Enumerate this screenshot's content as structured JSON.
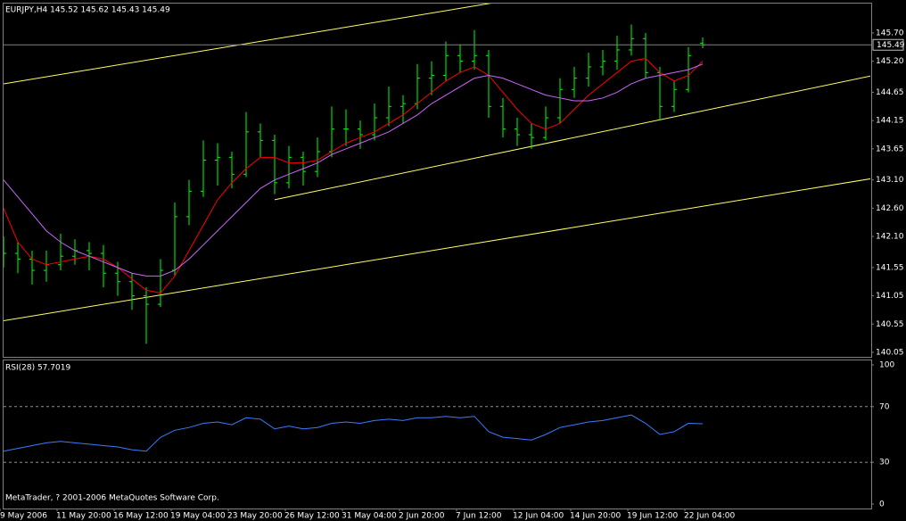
{
  "chart_data": [
    {
      "type": "ohlc",
      "title": "EURJPY,H4  145.52 145.62 145.43 145.49",
      "color": "#00ff00",
      "categories": [
        "9 May 2006",
        null,
        null,
        null,
        "11 May 20:00",
        null,
        null,
        null,
        "16 May 12:00",
        null,
        null,
        null,
        "19 May 04:00",
        null,
        null,
        null,
        "23 May 20:00",
        null,
        null,
        null,
        "26 May 12:00",
        null,
        null,
        null,
        "31 May 04:00",
        null,
        null,
        null,
        "2 Jun 20:00",
        null,
        null,
        null,
        "7 Jun 12:00",
        null,
        null,
        null,
        "12 Jun 04:00",
        null,
        null,
        null,
        "14 Jun 20:00",
        null,
        null,
        null,
        "19 Jun 12:00",
        null,
        null,
        null,
        "22 Jun 04:00",
        null
      ],
      "open": [
        141.9,
        141.8,
        141.7,
        141.5,
        141.6,
        141.75,
        141.85,
        141.8,
        141.45,
        141.3,
        141.05,
        140.9,
        141.5,
        142.45,
        142.9,
        143.45,
        143.5,
        143.2,
        143.95,
        143.8,
        143.05,
        143.5,
        143.25,
        143.6,
        144.0,
        144.0,
        143.9,
        144.2,
        144.4,
        144.45,
        144.9,
        144.95,
        145.3,
        145.2,
        145.3,
        144.4,
        144.0,
        143.9,
        143.85,
        144.2,
        144.7,
        144.9,
        145.1,
        145.2,
        145.4,
        145.6,
        145.0,
        144.4,
        144.7,
        145.52
      ],
      "high": [
        142.1,
        142.0,
        141.85,
        141.85,
        142.15,
        142.05,
        142.0,
        141.95,
        141.65,
        141.45,
        141.2,
        141.7,
        142.7,
        143.1,
        143.8,
        143.75,
        143.6,
        144.3,
        144.1,
        143.9,
        143.7,
        143.6,
        143.85,
        144.4,
        144.35,
        144.15,
        144.45,
        144.75,
        144.6,
        145.15,
        145.2,
        145.55,
        145.5,
        145.75,
        145.4,
        144.55,
        144.2,
        144.1,
        144.4,
        144.9,
        145.1,
        145.35,
        145.4,
        145.65,
        145.85,
        145.7,
        145.1,
        144.85,
        145.45,
        145.62
      ],
      "low": [
        141.55,
        141.45,
        141.25,
        141.3,
        141.5,
        141.6,
        141.5,
        141.2,
        141.05,
        140.8,
        140.2,
        140.85,
        141.4,
        142.3,
        142.8,
        143.0,
        142.95,
        143.15,
        143.5,
        142.85,
        142.95,
        143.0,
        143.15,
        143.5,
        143.7,
        143.65,
        143.8,
        144.05,
        144.1,
        144.35,
        144.6,
        144.85,
        145.0,
        145.05,
        144.2,
        143.85,
        143.7,
        143.65,
        143.8,
        144.1,
        144.55,
        144.75,
        144.95,
        145.05,
        145.3,
        144.9,
        144.15,
        144.3,
        144.65,
        145.43
      ],
      "close": [
        141.8,
        141.7,
        141.5,
        141.6,
        141.75,
        141.85,
        141.8,
        141.45,
        141.3,
        141.05,
        140.9,
        141.5,
        142.45,
        142.9,
        143.45,
        143.5,
        143.2,
        143.95,
        143.8,
        143.05,
        143.5,
        143.25,
        143.6,
        144.0,
        144.0,
        143.9,
        144.2,
        144.4,
        144.45,
        144.9,
        144.95,
        145.3,
        145.2,
        145.3,
        144.4,
        144.0,
        143.9,
        143.85,
        144.2,
        144.7,
        144.9,
        145.1,
        145.2,
        145.4,
        145.6,
        145.0,
        144.4,
        144.7,
        145.3,
        145.49
      ],
      "lines": [
        {
          "color": "#ff0000",
          "values": [
            142.6,
            142.0,
            141.7,
            141.6,
            141.65,
            141.7,
            141.75,
            141.7,
            141.55,
            141.35,
            141.15,
            141.1,
            141.4,
            141.85,
            142.3,
            142.75,
            143.05,
            143.3,
            143.5,
            143.5,
            143.4,
            143.4,
            143.45,
            143.6,
            143.75,
            143.85,
            143.95,
            144.1,
            144.25,
            144.45,
            144.65,
            144.85,
            145.0,
            145.1,
            144.95,
            144.65,
            144.35,
            144.1,
            144.0,
            144.1,
            144.35,
            144.6,
            144.8,
            145.0,
            145.2,
            145.25,
            145.0,
            144.85,
            144.95,
            145.2
          ]
        },
        {
          "color": "#cc66ff",
          "values": [
            143.1,
            142.8,
            142.5,
            142.2,
            142.0,
            141.85,
            141.75,
            141.65,
            141.55,
            141.45,
            141.4,
            141.4,
            141.5,
            141.7,
            141.95,
            142.2,
            142.45,
            142.7,
            142.95,
            143.1,
            143.2,
            143.3,
            143.4,
            143.55,
            143.65,
            143.75,
            143.85,
            143.95,
            144.1,
            144.25,
            144.45,
            144.6,
            144.75,
            144.9,
            144.95,
            144.9,
            144.8,
            144.7,
            144.6,
            144.55,
            144.5,
            144.5,
            144.55,
            144.65,
            144.8,
            144.9,
            144.95,
            145.0,
            145.05,
            145.15
          ]
        }
      ],
      "trendlines": [
        {
          "color": "#ffff66",
          "x": [
            0,
            34
          ],
          "y": [
            144.8,
            146.22
          ]
        },
        {
          "color": "#ffff66",
          "x": [
            19,
            61
          ],
          "y": [
            142.75,
            144.95
          ]
        },
        {
          "color": "#ffff66",
          "x": [
            0,
            61
          ],
          "y": [
            140.61,
            143.13
          ]
        }
      ],
      "last_price": {
        "value": 145.49,
        "label": "145.49"
      },
      "ylim": [
        139.97,
        146.22
      ],
      "yticks": [
        {
          "value": 145.7,
          "label": "145.70"
        },
        {
          "value": 145.2,
          "label": "145.20"
        },
        {
          "value": 144.65,
          "label": "144.65"
        },
        {
          "value": 144.15,
          "label": "144.15"
        },
        {
          "value": 143.65,
          "label": "143.65"
        },
        {
          "value": 143.1,
          "label": "143.10"
        },
        {
          "value": 142.6,
          "label": "142.60"
        },
        {
          "value": 142.1,
          "label": "142.10"
        },
        {
          "value": 141.55,
          "label": "141.55"
        },
        {
          "value": 141.05,
          "label": "141.05"
        },
        {
          "value": 140.55,
          "label": "140.55"
        },
        {
          "value": 140.05,
          "label": "140.05"
        }
      ]
    },
    {
      "type": "line",
      "title": "RSI(28) 57.7019",
      "color": "#3d7bff",
      "values": [
        38,
        40,
        42,
        44,
        45,
        44,
        43,
        42,
        41,
        39,
        38,
        48,
        53,
        55,
        58,
        59,
        57,
        62,
        61,
        54,
        56,
        54,
        55,
        58,
        59,
        58,
        60,
        61,
        60,
        62,
        62,
        63,
        62,
        63,
        52,
        48,
        47,
        46,
        50,
        55,
        57,
        59,
        60,
        62,
        64,
        58,
        50,
        52,
        58,
        57.7019
      ],
      "ylim": [
        0,
        100
      ],
      "yticks": [
        100,
        70,
        30,
        0
      ],
      "levels": [
        70,
        30
      ],
      "annotation": "MetaTrader, ? 2001-2006 MetaQuotes Software Corp."
    }
  ]
}
